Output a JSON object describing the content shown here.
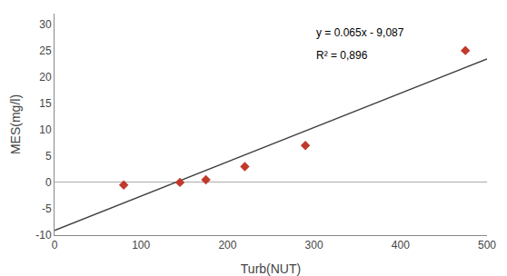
{
  "chart_data": {
    "type": "scatter",
    "xlabel": "Turb(NUT)",
    "ylabel": "MES(mg/l)",
    "xlim": [
      0,
      500
    ],
    "ylim": [
      -10,
      32
    ],
    "xticks": [
      0,
      100,
      200,
      300,
      400,
      500
    ],
    "yticks": [
      -10,
      -5,
      0,
      5,
      10,
      15,
      20,
      25,
      30
    ],
    "grid": false,
    "series": [
      {
        "type": "scatter",
        "x": [
          80,
          145,
          175,
          220,
          290,
          475
        ],
        "values": [
          -0.5,
          0.0,
          0.5,
          3.0,
          7.0,
          25.0
        ],
        "color": "#c0392b",
        "marker": "diamond"
      },
      {
        "type": "line",
        "x": [
          0,
          500
        ],
        "values": [
          -9.087,
          23.413
        ],
        "color": "#404040",
        "line_style": "solid"
      }
    ],
    "annotations": [
      "y = 0.065x - 9,087",
      "R² = 0,896"
    ]
  }
}
